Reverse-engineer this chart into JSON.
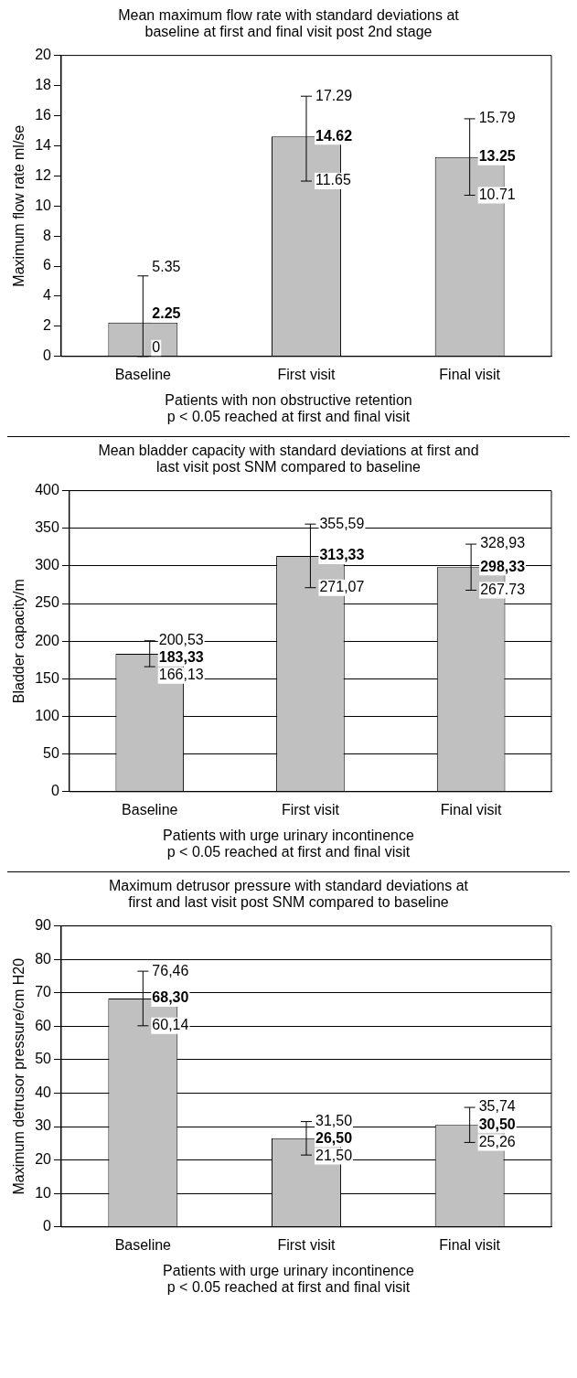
{
  "chart_data": [
    {
      "type": "bar",
      "title": "Mean maximum flow rate with standard deviations at baseline at first and final visit post 2nd stage",
      "xlabel": "Patients with non obstructive retention",
      "ylabel": "Maximum flow rate ml/se",
      "categories": [
        "Baseline",
        "First visit",
        "Final visit"
      ],
      "values": [
        2.25,
        14.62,
        13.25
      ],
      "color": "#c0c0c0",
      "errors": [
        [
          0,
          5.35
        ],
        [
          11.65,
          17.29
        ],
        [
          10.71,
          15.79
        ]
      ],
      "value_labels": [
        "2.25",
        "14.62",
        "13.25"
      ],
      "annotations": [
        "p < 0.05 reached at first and final visit",
        {
          "text": "5.35",
          "x": "Baseline",
          "y": 5.35
        },
        {
          "text": "0",
          "x": "Baseline",
          "y": 0
        },
        {
          "text": "17.29",
          "x": "First visit",
          "y": 17.29
        },
        {
          "text": "11.65",
          "x": "First visit",
          "y": 11.65
        },
        {
          "text": "15.79",
          "x": "Final visit",
          "y": 15.79
        },
        {
          "text": "10.71",
          "x": "Final visit",
          "y": 10.71
        }
      ],
      "ylim": [
        0,
        20
      ],
      "yticks": [
        0,
        2,
        4,
        6,
        8,
        10,
        12,
        14,
        16,
        18,
        20
      ]
    },
    {
      "type": "bar",
      "title": "Mean bladder capacity with standard deviations at first and last visit post SNM compared to baseline",
      "xlabel": "Patients with urge urinary incontinence",
      "ylabel": "Bladder capacity/m",
      "categories": [
        "Baseline",
        "First visit",
        "Final visit"
      ],
      "values": [
        183.33,
        313.33,
        298.33
      ],
      "color": "#c0c0c0",
      "errors": [
        [
          166.13,
          200.53
        ],
        [
          271.07,
          355.59
        ],
        [
          267.73,
          328.93
        ]
      ],
      "value_labels": [
        "183,33",
        "313,33",
        "298,33"
      ],
      "annotations": [
        "p < 0.05 reached at first and final visit",
        {
          "text": "200,53",
          "x": "Baseline",
          "y": 200.53
        },
        {
          "text": "166,13",
          "x": "Baseline",
          "y": 166.13
        },
        {
          "text": "355,59",
          "x": "First visit",
          "y": 355.59
        },
        {
          "text": "271,07",
          "x": "First visit",
          "y": 271.07
        },
        {
          "text": "328,93",
          "x": "Final visit",
          "y": 328.93
        },
        {
          "text": "267.73",
          "x": "Final visit",
          "y": 267.73
        }
      ],
      "ylim": [
        0,
        400
      ],
      "yticks": [
        0,
        50,
        100,
        150,
        200,
        250,
        300,
        350,
        400
      ],
      "grid": "y"
    },
    {
      "type": "bar",
      "title": "Maximum detrusor pressure with standard deviations at first and last visit post SNM compared to baseline",
      "xlabel": "Patients with urge urinary incontinence",
      "ylabel": "Maximum detrusor pressure/cm H20",
      "categories": [
        "Baseline",
        "First visit",
        "Final visit"
      ],
      "values": [
        68.3,
        26.5,
        30.5
      ],
      "color": "#c0c0c0",
      "errors": [
        [
          60.14,
          76.46
        ],
        [
          21.5,
          31.5
        ],
        [
          25.26,
          35.74
        ]
      ],
      "value_labels": [
        "68,30",
        "26,50",
        "30,50"
      ],
      "annotations": [
        "p < 0.05 reached at first and final visit",
        {
          "text": "76,46",
          "x": "Baseline",
          "y": 76.46
        },
        {
          "text": "60,14",
          "x": "Baseline",
          "y": 60.14
        },
        {
          "text": "31,50",
          "x": "First visit",
          "y": 31.5
        },
        {
          "text": "21,50",
          "x": "First visit",
          "y": 21.5
        },
        {
          "text": "35,74",
          "x": "Final visit",
          "y": 35.74
        },
        {
          "text": "25,26",
          "x": "Final visit",
          "y": 25.26
        }
      ],
      "ylim": [
        0,
        90
      ],
      "yticks": [
        0,
        10,
        20,
        30,
        40,
        50,
        60,
        70,
        80,
        90
      ],
      "grid": "y"
    }
  ]
}
